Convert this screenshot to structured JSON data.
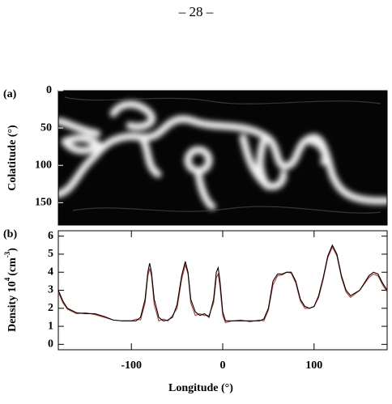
{
  "page_number": "– 28 –",
  "chart_data": [
    {
      "type": "image",
      "label": "(a)",
      "y_label": "Colatitude (°)",
      "ylim": [
        0,
        180
      ],
      "yticks": [
        0,
        50,
        100,
        150
      ]
    },
    {
      "type": "line",
      "label": "(b)",
      "x_label": "Longitude (°)",
      "y_label": [
        "Density 10",
        "4",
        "(cm",
        "-3",
        ")"
      ],
      "xlim": [
        -180,
        180
      ],
      "xticks": [
        -100,
        0,
        100
      ],
      "ylim": [
        -0.3,
        6.3
      ],
      "yticks": [
        0,
        1,
        2,
        3,
        4,
        5,
        6
      ],
      "x": [
        -180,
        -175,
        -170,
        -160,
        -150,
        -140,
        -130,
        -120,
        -110,
        -100,
        -95,
        -90,
        -85,
        -82,
        -80,
        -78,
        -75,
        -70,
        -65,
        -60,
        -55,
        -50,
        -45,
        -41,
        -38,
        -35,
        -30,
        -25,
        -20,
        -15,
        -10,
        -7,
        -5,
        -3,
        0,
        3,
        10,
        20,
        30,
        40,
        45,
        50,
        55,
        60,
        65,
        70,
        75,
        80,
        85,
        90,
        95,
        100,
        105,
        110,
        115,
        120,
        125,
        130,
        135,
        140,
        150,
        160,
        165,
        170,
        175,
        180
      ],
      "series": [
        {
          "color": "#c0392b",
          "values": [
            2.9,
            2.3,
            1.95,
            1.7,
            1.75,
            1.65,
            1.5,
            1.35,
            1.3,
            1.3,
            1.4,
            1.35,
            2.3,
            3.8,
            4.2,
            3.8,
            2.2,
            1.3,
            1.4,
            1.3,
            1.6,
            2.0,
            3.6,
            4.4,
            3.9,
            2.3,
            1.6,
            1.7,
            1.6,
            1.6,
            2.3,
            3.7,
            3.9,
            3.2,
            1.6,
            1.2,
            1.3,
            1.35,
            1.25,
            1.35,
            1.3,
            1.9,
            3.3,
            3.8,
            3.85,
            4.0,
            3.95,
            3.4,
            2.4,
            2.0,
            2.0,
            2.1,
            2.6,
            3.6,
            4.8,
            5.4,
            4.9,
            3.7,
            2.9,
            2.6,
            3.0,
            3.7,
            3.9,
            3.8,
            3.3,
            2.9
          ]
        },
        {
          "color": "#000000",
          "values": [
            3.0,
            2.4,
            2.0,
            1.75,
            1.7,
            1.7,
            1.55,
            1.35,
            1.3,
            1.3,
            1.3,
            1.5,
            2.5,
            4.0,
            4.5,
            4.0,
            2.5,
            1.5,
            1.3,
            1.35,
            1.5,
            2.2,
            3.8,
            4.6,
            4.0,
            2.5,
            1.8,
            1.6,
            1.7,
            1.5,
            2.5,
            4.0,
            4.25,
            3.5,
            1.8,
            1.3,
            1.3,
            1.3,
            1.3,
            1.3,
            1.4,
            2.0,
            3.5,
            3.9,
            3.9,
            4.0,
            4.0,
            3.5,
            2.5,
            2.1,
            2.0,
            2.1,
            2.7,
            3.7,
            4.9,
            5.5,
            5.0,
            3.8,
            3.0,
            2.7,
            3.0,
            3.8,
            4.0,
            3.9,
            3.4,
            3.0
          ]
        }
      ]
    }
  ]
}
